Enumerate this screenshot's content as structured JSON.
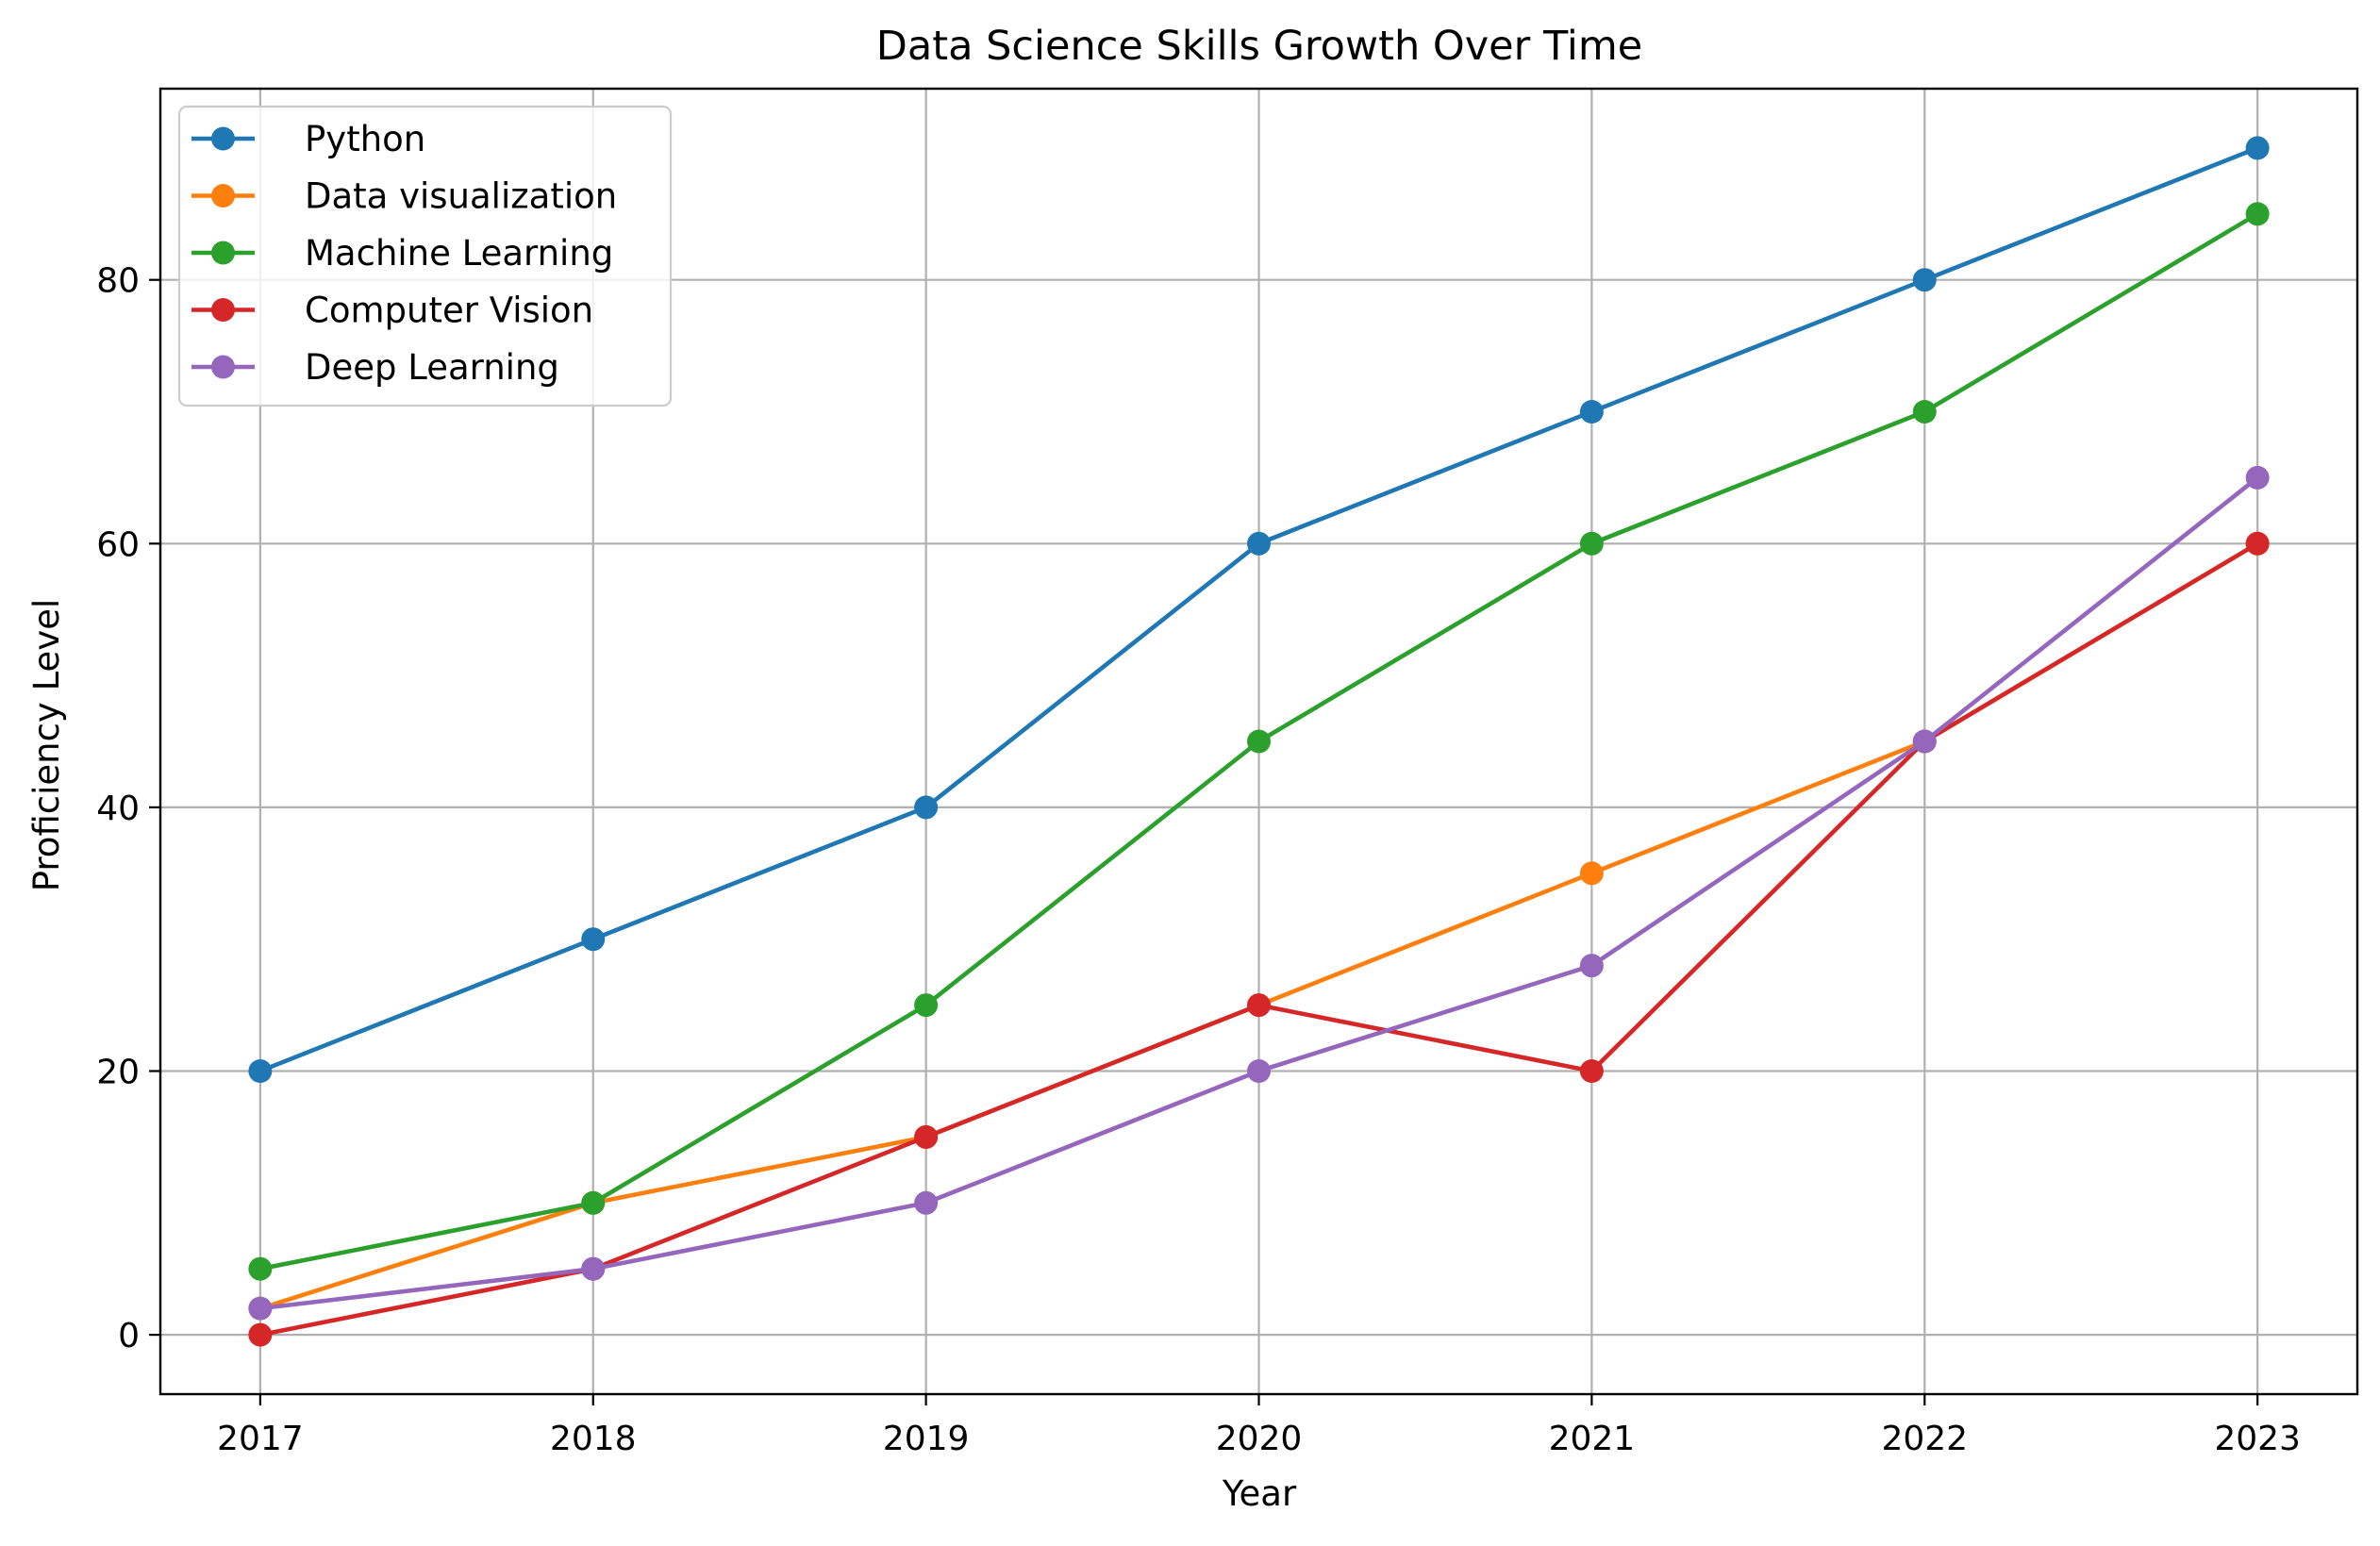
{
  "chart_data": {
    "type": "line",
    "title": "Data Science Skills Growth Over Time",
    "xlabel": "Year",
    "ylabel": "Proficiency Level",
    "categories": [
      "2017",
      "2018",
      "2019",
      "2020",
      "2021",
      "2022",
      "2023"
    ],
    "xlim": [
      2016.7,
      2023.3
    ],
    "ylim": [
      -4.5,
      94.5
    ],
    "yticks": [
      0,
      20,
      40,
      60,
      80
    ],
    "grid": true,
    "legend_position": "upper-left",
    "series": [
      {
        "name": "Python",
        "color": "#1f77b4",
        "values": [
          20,
          30,
          40,
          60,
          70,
          80,
          90
        ]
      },
      {
        "name": "Data visualization",
        "color": "#ff7f0e",
        "values": [
          2,
          10,
          15,
          25,
          35,
          45,
          60
        ]
      },
      {
        "name": "Machine Learning",
        "color": "#2ca02c",
        "values": [
          5,
          10,
          25,
          45,
          60,
          70,
          85
        ]
      },
      {
        "name": "Computer Vision",
        "color": "#d62728",
        "values": [
          0,
          5,
          15,
          25,
          20,
          45,
          60
        ]
      },
      {
        "name": "Deep Learning",
        "color": "#9467bd",
        "values": [
          2,
          5,
          10,
          20,
          28,
          45,
          65
        ]
      }
    ]
  }
}
